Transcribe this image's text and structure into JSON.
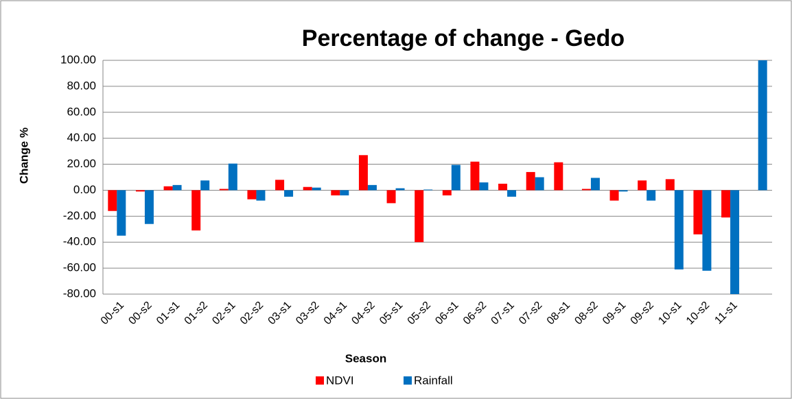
{
  "chart_data": {
    "type": "bar",
    "title": "Percentage of change - Gedo",
    "x_label": "Season",
    "y_label": "Change %",
    "categories": [
      "00-s1",
      "00-s2",
      "01-s1",
      "01-s2",
      "02-s1",
      "02-s2",
      "03-s1",
      "03-s2",
      "04-s1",
      "04-s2",
      "05-s1",
      "05-s2",
      "06-s1",
      "06-s2",
      "07-s1",
      "07-s2",
      "08-s1",
      "08-s2",
      "09-s1",
      "09-s2",
      "10-s1",
      "10-s2",
      "11-s1",
      null
    ],
    "series": [
      {
        "name": "NDVI",
        "color": "#ff0000",
        "values": [
          -16,
          -1,
          3,
          -31,
          1,
          -7,
          8,
          2.5,
          -4,
          27,
          -10,
          -40,
          -4,
          22,
          5,
          14,
          21.5,
          1,
          -8,
          7.5,
          8.5,
          -34,
          -21,
          0
        ]
      },
      {
        "name": "Rainfall",
        "color": "#0070c0",
        "values": [
          -35,
          -26,
          4,
          7.5,
          20.5,
          -8,
          -5,
          2,
          -4,
          4,
          1.5,
          0.5,
          19.5,
          6,
          -5,
          10,
          0,
          9.5,
          -1,
          -8,
          -61,
          -62,
          -82,
          100
        ]
      }
    ],
    "ylim": [
      -80,
      100
    ],
    "yticks": [
      {
        "value": -80,
        "label": "-80.00"
      },
      {
        "value": -60,
        "label": "-60.00"
      },
      {
        "value": -40,
        "label": "-40.00"
      },
      {
        "value": -20,
        "label": "-20.00"
      },
      {
        "value": 0,
        "label": "0.00"
      },
      {
        "value": 20,
        "label": "20.00"
      },
      {
        "value": 40,
        "label": "40.00"
      },
      {
        "value": 60,
        "label": "60.00"
      },
      {
        "value": 80,
        "label": "80.00"
      },
      {
        "value": 100,
        "label": "100.00"
      }
    ],
    "grid": true,
    "legend": "bottom"
  }
}
